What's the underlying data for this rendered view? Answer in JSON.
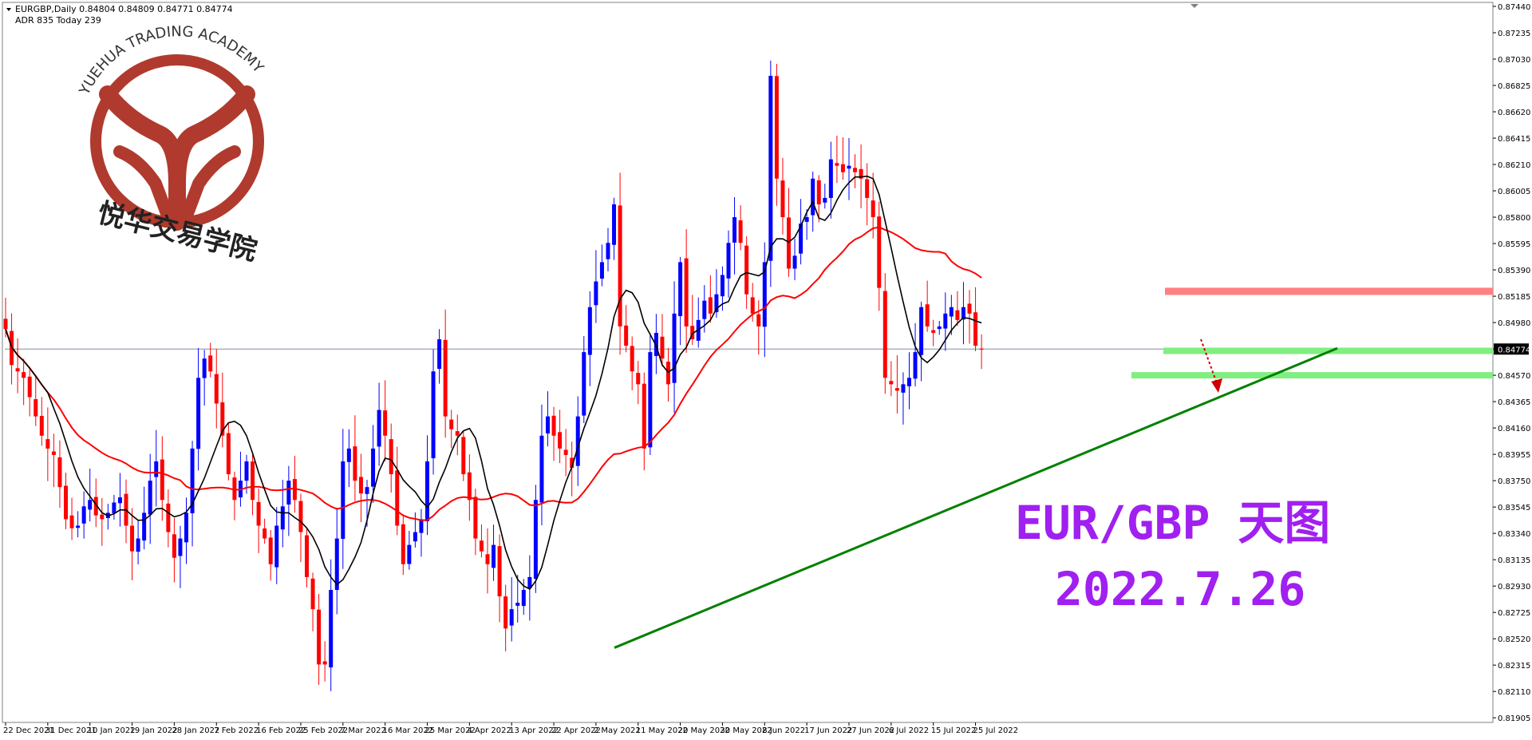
{
  "header": {
    "symbol_line": "EURGBP,Daily  0.84804 0.84809 0.84771 0.84774",
    "adr_line": "ADR 835  Today 239"
  },
  "logo": {
    "arc_text": "YUEHUA TRADING ACADEMY",
    "cn_text": "悦华交易学院",
    "color": "#b03a2e"
  },
  "overlay": {
    "title": "EUR/GBP 天图",
    "date": "2022.7.26",
    "color": "#a020f0"
  },
  "chart_data": {
    "type": "candlestick",
    "timeframe": "Daily",
    "symbol": "EURGBP",
    "ylim": [
      0.819,
      0.8744
    ],
    "y_ticks": [
      "0.87440",
      "0.87235",
      "0.87030",
      "0.86825",
      "0.86620",
      "0.86415",
      "0.86210",
      "0.86005",
      "0.85800",
      "0.85595",
      "0.85390",
      "0.85185",
      "0.84980",
      "0.84774",
      "0.84570",
      "0.84365",
      "0.84160",
      "0.83955",
      "0.83750",
      "0.83545",
      "0.83340",
      "0.83135",
      "0.82930",
      "0.82725",
      "0.82520",
      "0.82315",
      "0.82110",
      "0.81905"
    ],
    "x_ticks": [
      {
        "label": "22 Dec 2021",
        "i": 0
      },
      {
        "label": "31 Dec 2021",
        "i": 7
      },
      {
        "label": "10 Jan 2022",
        "i": 14
      },
      {
        "label": "19 Jan 2022",
        "i": 21
      },
      {
        "label": "28 Jan 2022",
        "i": 28
      },
      {
        "label": "7 Feb 2022",
        "i": 35
      },
      {
        "label": "16 Feb 2022",
        "i": 42
      },
      {
        "label": "25 Feb 2022",
        "i": 49
      },
      {
        "label": "7 Mar 2022",
        "i": 56
      },
      {
        "label": "16 Mar 2022",
        "i": 63
      },
      {
        "label": "25 Mar 2022",
        "i": 70
      },
      {
        "label": "4 Apr 2022",
        "i": 77
      },
      {
        "label": "13 Apr 2022",
        "i": 84
      },
      {
        "label": "22 Apr 2022",
        "i": 91
      },
      {
        "label": "2 May 2022",
        "i": 98
      },
      {
        "label": "11 May 2022",
        "i": 105
      },
      {
        "label": "20 May 2022",
        "i": 112
      },
      {
        "label": "30 May 2022",
        "i": 119
      },
      {
        "label": "8 Jun 2022",
        "i": 126
      },
      {
        "label": "17 Jun 2022",
        "i": 133
      },
      {
        "label": "27 Jun 2022",
        "i": 140
      },
      {
        "label": "6 Jul 2022",
        "i": 147
      },
      {
        "label": "15 Jul 2022",
        "i": 154
      },
      {
        "label": "25 Jul 2022",
        "i": 161
      }
    ],
    "current_price": 0.84774,
    "closes": [
      0.8493,
      0.8465,
      0.846,
      0.8455,
      0.844,
      0.8425,
      0.841,
      0.84,
      0.8395,
      0.837,
      0.8345,
      0.8338,
      0.834,
      0.8355,
      0.836,
      0.8348,
      0.8345,
      0.835,
      0.8358,
      0.8362,
      0.834,
      0.832,
      0.833,
      0.835,
      0.8375,
      0.839,
      0.836,
      0.8335,
      0.8315,
      0.833,
      0.835,
      0.84,
      0.8455,
      0.847,
      0.846,
      0.8435,
      0.841,
      0.838,
      0.836,
      0.8375,
      0.839,
      0.836,
      0.834,
      0.833,
      0.831,
      0.834,
      0.8355,
      0.8375,
      0.836,
      0.8335,
      0.83,
      0.8275,
      0.8232,
      0.8232,
      0.829,
      0.833,
      0.839,
      0.84,
      0.8375,
      0.8365,
      0.837,
      0.84,
      0.843,
      0.841,
      0.838,
      0.834,
      0.831,
      0.8325,
      0.8335,
      0.8345,
      0.839,
      0.846,
      0.8485,
      0.8425,
      0.8415,
      0.841,
      0.838,
      0.836,
      0.833,
      0.832,
      0.831,
      0.8325,
      0.8285,
      0.826,
      0.8275,
      0.828,
      0.829,
      0.83,
      0.836,
      0.841,
      0.8425,
      0.841,
      0.84,
      0.8395,
      0.8385,
      0.8425,
      0.8475,
      0.851,
      0.853,
      0.8545,
      0.856,
      0.859,
      0.8495,
      0.848,
      0.846,
      0.845,
      0.84,
      0.8475,
      0.849,
      0.847,
      0.845,
      0.8505,
      0.8545,
      0.8495,
      0.8485,
      0.85,
      0.8515,
      0.8505,
      0.852,
      0.8535,
      0.856,
      0.858,
      0.856,
      0.852,
      0.8505,
      0.8495,
      0.8545,
      0.869,
      0.861,
      0.858,
      0.854,
      0.855,
      0.8575,
      0.858,
      0.861,
      0.859,
      0.8595,
      0.8625,
      0.862,
      0.8615,
      0.862,
      0.8615,
      0.861,
      0.8595,
      0.858,
      0.8525,
      0.8455,
      0.845,
      0.8445,
      0.845,
      0.8455,
      0.8475,
      0.851,
      0.8495,
      0.849,
      0.8495,
      0.8505,
      0.851,
      0.85,
      0.851,
      0.8505,
      0.848,
      0.8477
    ],
    "bull_color": "#0000ff",
    "bear_color": "#ff0000",
    "ma_fast_color": "#000000",
    "ma_slow_color": "#ff0000",
    "trendline_color": "#008000",
    "resistance_color": "#ff8080",
    "support_color": "#80ee80"
  }
}
